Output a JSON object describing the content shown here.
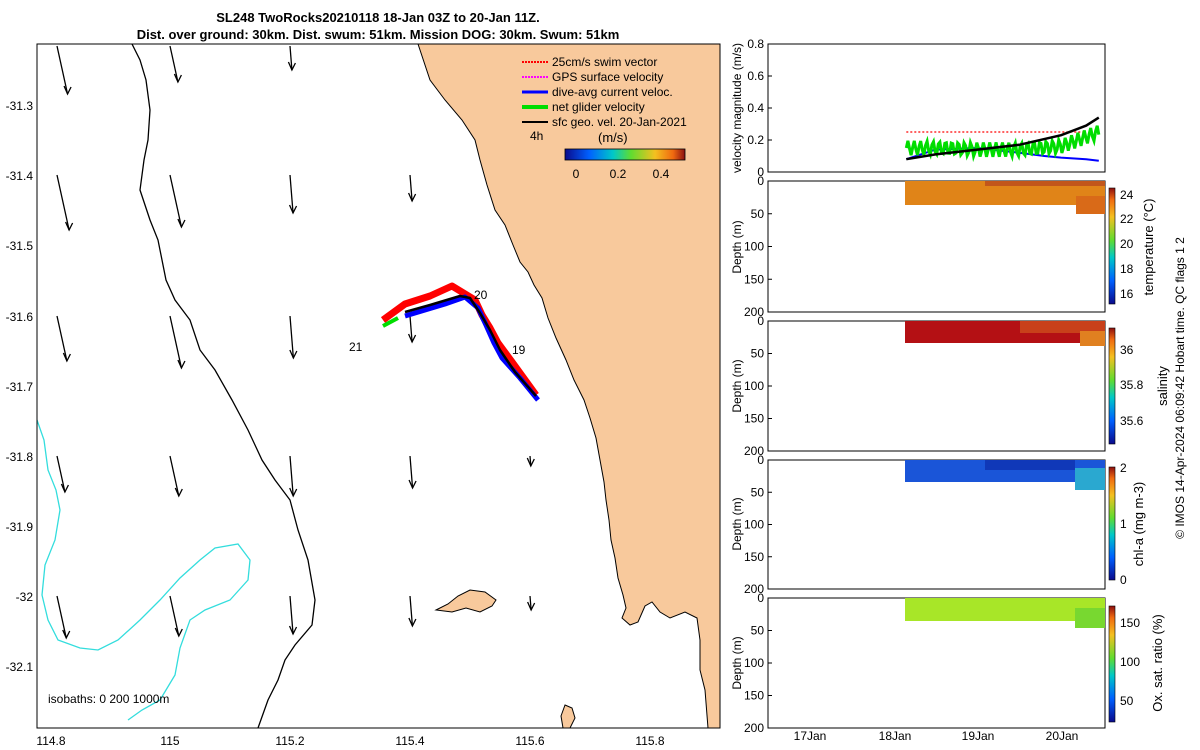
{
  "title": {
    "line1": "SL248 TwoRocks20210118 18-Jan 03Z to 20-Jan 11Z.",
    "line2": "Dist. over ground: 30km. Dist. swum: 51km. Mission DOG: 30km. Swum: 51km"
  },
  "colors": {
    "land": "#f8c99c",
    "coast": "#000000",
    "isobath_200": "#000000",
    "isobath_1000": "#33dddd",
    "swim": "#ff0000",
    "gps": "#ff00ff",
    "dive_avg": "#0000ff",
    "net": "#00dd00",
    "geo": "#000000"
  },
  "map": {
    "x_ticks": [
      "114.8",
      "115",
      "115.2",
      "115.4",
      "115.6",
      "115.8"
    ],
    "y_ticks": [
      "-31.3",
      "-31.4",
      "-31.5",
      "-31.6",
      "-31.7",
      "-31.8",
      "-31.9",
      "-32",
      "-32.1"
    ],
    "legend": [
      {
        "label": "25cm/s swim vector",
        "key": "swim"
      },
      {
        "label": "GPS surface velocity",
        "key": "gps"
      },
      {
        "label": "dive-avg current veloc.",
        "key": "dive_avg"
      },
      {
        "label": "net glider velocity",
        "key": "net"
      },
      {
        "label": "sfc geo. vel. 20-Jan-2021",
        "key": "geo"
      }
    ],
    "scale_label": "4h",
    "colorbar_title": "(m/s)",
    "colorbar_ticks": [
      "0",
      "0.2",
      "0.4"
    ],
    "day_labels": [
      "20",
      "19",
      "21"
    ],
    "isobaths_text": "isobaths: 0   200  1000m"
  },
  "chart_data": [
    {
      "type": "line",
      "title": "",
      "ylabel": "velocity magnitude (m/s)",
      "ylim": [
        0,
        0.8
      ],
      "y_ticks": [
        "0",
        "0.2",
        "0.4",
        "0.6",
        "0.8"
      ],
      "x_ticks": [
        "17Jan",
        "18Jan",
        "19Jan",
        "20Jan"
      ],
      "series": [
        {
          "name": "swim vector",
          "x": [
            18.15,
            18.5,
            19.0,
            19.5,
            20.0,
            20.3
          ],
          "values": [
            0.25,
            0.25,
            0.25,
            0.25,
            0.25,
            0.25
          ]
        },
        {
          "name": "dive-avg current",
          "x": [
            18.15,
            18.5,
            19.0,
            19.5,
            19.8,
            20.0,
            20.3,
            20.45
          ],
          "values": [
            0.08,
            0.14,
            0.15,
            0.12,
            0.1,
            0.09,
            0.08,
            0.07
          ]
        },
        {
          "name": "net glider velocity",
          "x": [
            18.15,
            18.6,
            19.0,
            19.5,
            20.0,
            20.3,
            20.45
          ],
          "values": [
            0.15,
            0.15,
            0.14,
            0.14,
            0.16,
            0.22,
            0.25
          ]
        },
        {
          "name": "sfc geo. vel.",
          "x": [
            18.15,
            18.5,
            19.0,
            19.5,
            20.0,
            20.3,
            20.45
          ],
          "values": [
            0.08,
            0.11,
            0.14,
            0.17,
            0.23,
            0.29,
            0.34
          ]
        }
      ]
    },
    {
      "type": "heatmap",
      "ylabel": "Depth (m)",
      "cbar_label": "temperature (°C)",
      "cbar_ticks": [
        "24",
        "22",
        "20",
        "18",
        "16"
      ],
      "y_ticks": [
        "0",
        "50",
        "100",
        "150",
        "200"
      ],
      "y_range": [
        0,
        200
      ],
      "cbar_range": [
        15,
        24.5
      ],
      "time_range": [
        "18.15Jan",
        "20.45Jan"
      ],
      "depth_range_m": [
        0,
        30
      ],
      "value_typical": 23.3
    },
    {
      "type": "heatmap",
      "ylabel": "Depth (m)",
      "cbar_label": "salinity",
      "cbar_ticks": [
        "36",
        "35.8",
        "35.6"
      ],
      "y_ticks": [
        "0",
        "50",
        "100",
        "150",
        "200"
      ],
      "y_range": [
        0,
        200
      ],
      "cbar_range": [
        35.5,
        36.1
      ],
      "time_range": [
        "18.15Jan",
        "20.45Jan"
      ],
      "depth_range_m": [
        0,
        30
      ],
      "value_typical": 36.08
    },
    {
      "type": "heatmap",
      "ylabel": "Depth (m)",
      "cbar_label": "chl-a (mg m-3)",
      "cbar_ticks": [
        "2",
        "1",
        "0"
      ],
      "y_ticks": [
        "0",
        "50",
        "100",
        "150",
        "200"
      ],
      "y_range": [
        0,
        200
      ],
      "cbar_range": [
        0,
        2
      ],
      "time_range": [
        "18.15Jan",
        "20.45Jan"
      ],
      "depth_range_m": [
        0,
        30
      ],
      "value_typical": 0.3
    },
    {
      "type": "heatmap",
      "ylabel": "Depth (m)",
      "cbar_label": "Ox. sat. ratio (%)",
      "cbar_ticks": [
        "150",
        "100",
        "50"
      ],
      "y_ticks": [
        "0",
        "50",
        "100",
        "150",
        "200"
      ],
      "x_ticks": [
        "17Jan",
        "18Jan",
        "19Jan",
        "20Jan"
      ],
      "y_range": [
        0,
        200
      ],
      "cbar_range": [
        25,
        170
      ],
      "time_range": [
        "18.15Jan",
        "20.45Jan"
      ],
      "depth_range_m": [
        0,
        30
      ],
      "value_typical": 125
    }
  ],
  "credit": "© IMOS 14-Apr-2024 06:09:42 Hobart time. QC flags 1  2"
}
